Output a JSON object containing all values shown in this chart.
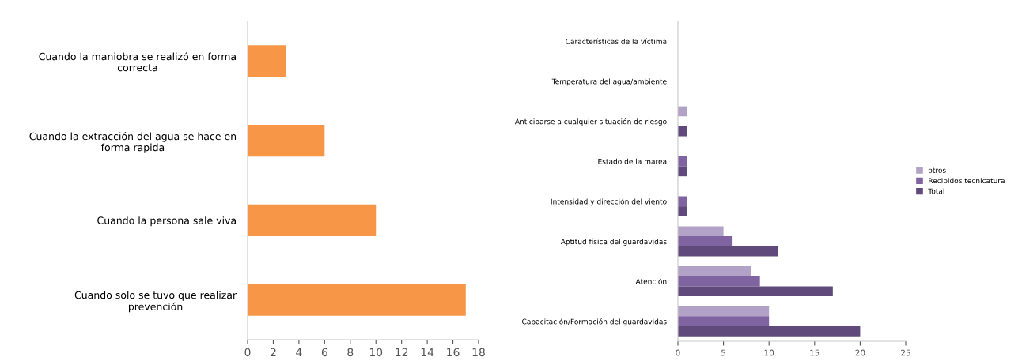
{
  "chart_data": [
    {
      "type": "bar",
      "orientation": "horizontal",
      "categories": [
        "Cuando la maniobra se realizó en forma correcta",
        "Cuando la extracción del agua se hace en forma rapida",
        "Cuando la persona sale viva",
        "Cuando solo se tuvo que realizar prevención"
      ],
      "values": [
        3,
        6,
        10,
        17
      ],
      "color": "#f79646",
      "xlim": [
        0,
        18
      ],
      "xticks": [
        0,
        2,
        4,
        6,
        8,
        10,
        12,
        14,
        16,
        18
      ],
      "grid": false,
      "legend": false
    },
    {
      "type": "bar",
      "orientation": "horizontal",
      "categories": [
        "Características de la víctima",
        "Temperatura del agua/ambiente",
        "Anticiparse a cualquier situación de riesgo",
        "Estado de la marea",
        "Intensidad y dirección del viento",
        "Aptitud física del guardavidas",
        "Atención",
        "Capacitación/Formación del guardavidas"
      ],
      "series": [
        {
          "name": "otros",
          "color": "#b3a2c7",
          "values": [
            0,
            0,
            1,
            0,
            0,
            5,
            8,
            10
          ]
        },
        {
          "name": "Recibidos tecnicatura",
          "color": "#8064a2",
          "values": [
            0,
            0,
            0,
            1,
            1,
            6,
            9,
            10
          ]
        },
        {
          "name": "Total",
          "color": "#604a7b",
          "values": [
            0,
            0,
            1,
            1,
            1,
            11,
            17,
            20
          ]
        }
      ],
      "xlim": [
        0,
        25
      ],
      "xticks": [
        0,
        5,
        10,
        15,
        20,
        25
      ],
      "grid": false,
      "legend": "right"
    }
  ]
}
